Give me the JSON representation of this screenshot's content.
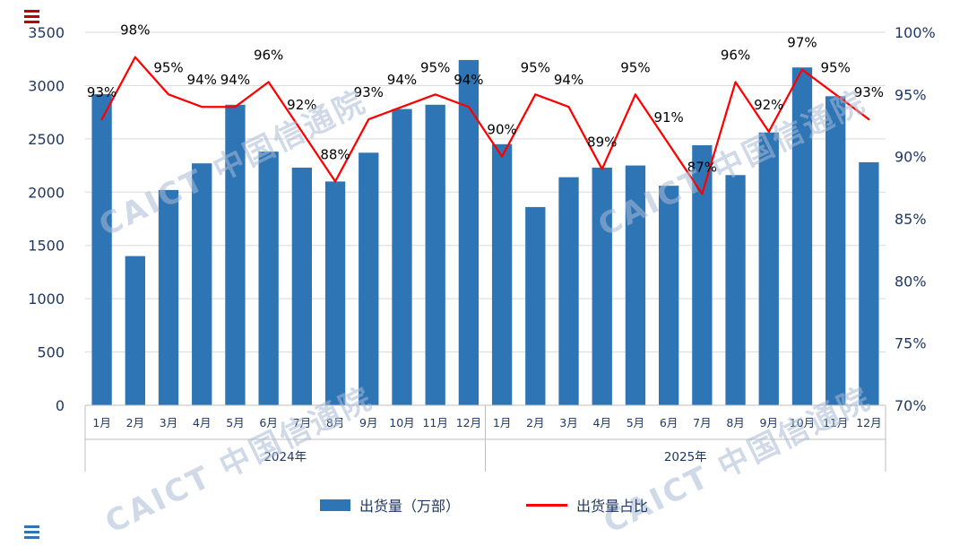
{
  "watermark": {
    "text": "CAICT 中国信通院"
  },
  "legend": {
    "items": [
      {
        "label": "出货量（万部）",
        "type": "bar",
        "color": "#2E75B6"
      },
      {
        "label": "出货量占比",
        "type": "line",
        "color": "#FF0000"
      }
    ]
  },
  "chart_data": {
    "type": "bar+line",
    "categories": [
      "1月",
      "2月",
      "3月",
      "4月",
      "5月",
      "6月",
      "7月",
      "8月",
      "9月",
      "10月",
      "11月",
      "12月",
      "1月",
      "2月",
      "3月",
      "4月",
      "5月",
      "6月",
      "7月",
      "8月",
      "9月",
      "10月",
      "11月",
      "12月"
    ],
    "year_groups": [
      {
        "label": "2024年",
        "start": 0,
        "count": 12
      },
      {
        "label": "2025年",
        "start": 12,
        "count": 12
      }
    ],
    "series": [
      {
        "name": "出货量（万部）",
        "type": "bar",
        "axis": "left",
        "color": "#2E75B6",
        "values": [
          2920,
          1400,
          2020,
          2270,
          2820,
          2380,
          2230,
          2100,
          2370,
          2780,
          2820,
          3240,
          2450,
          1860,
          2140,
          2230,
          2250,
          2060,
          2440,
          2160,
          2560,
          3170,
          2900,
          2280
        ]
      },
      {
        "name": "出货量占比",
        "type": "line",
        "axis": "right",
        "color": "#FF0000",
        "label_suffix": "%",
        "values": [
          93,
          98,
          95,
          94,
          94,
          96,
          92,
          88,
          93,
          94,
          95,
          94,
          90,
          95,
          94,
          89,
          95,
          91,
          87,
          96,
          92,
          97,
          95,
          93
        ]
      }
    ],
    "left_axis": {
      "min": 0,
      "max": 3500,
      "step": 500,
      "tick_labels": [
        "0",
        "500",
        "1000",
        "1500",
        "2000",
        "2500",
        "3000",
        "3500"
      ]
    },
    "right_axis": {
      "min": 70,
      "max": 100,
      "step": 5,
      "tick_labels": [
        "70%",
        "75%",
        "80%",
        "85%",
        "90%",
        "95%",
        "100%"
      ]
    },
    "grid": true,
    "legend_position": "bottom"
  },
  "colors": {
    "bar": "#2E75B6",
    "line": "#FF0000",
    "axis_text": "#1F3864",
    "data_label": "#000000",
    "gridline": "#D9D9D9",
    "axis_line": "#BFBFBF",
    "watermark": "#A8BBD4",
    "top_icon": "#C00000",
    "bottom_icon": "#2E75B6"
  }
}
